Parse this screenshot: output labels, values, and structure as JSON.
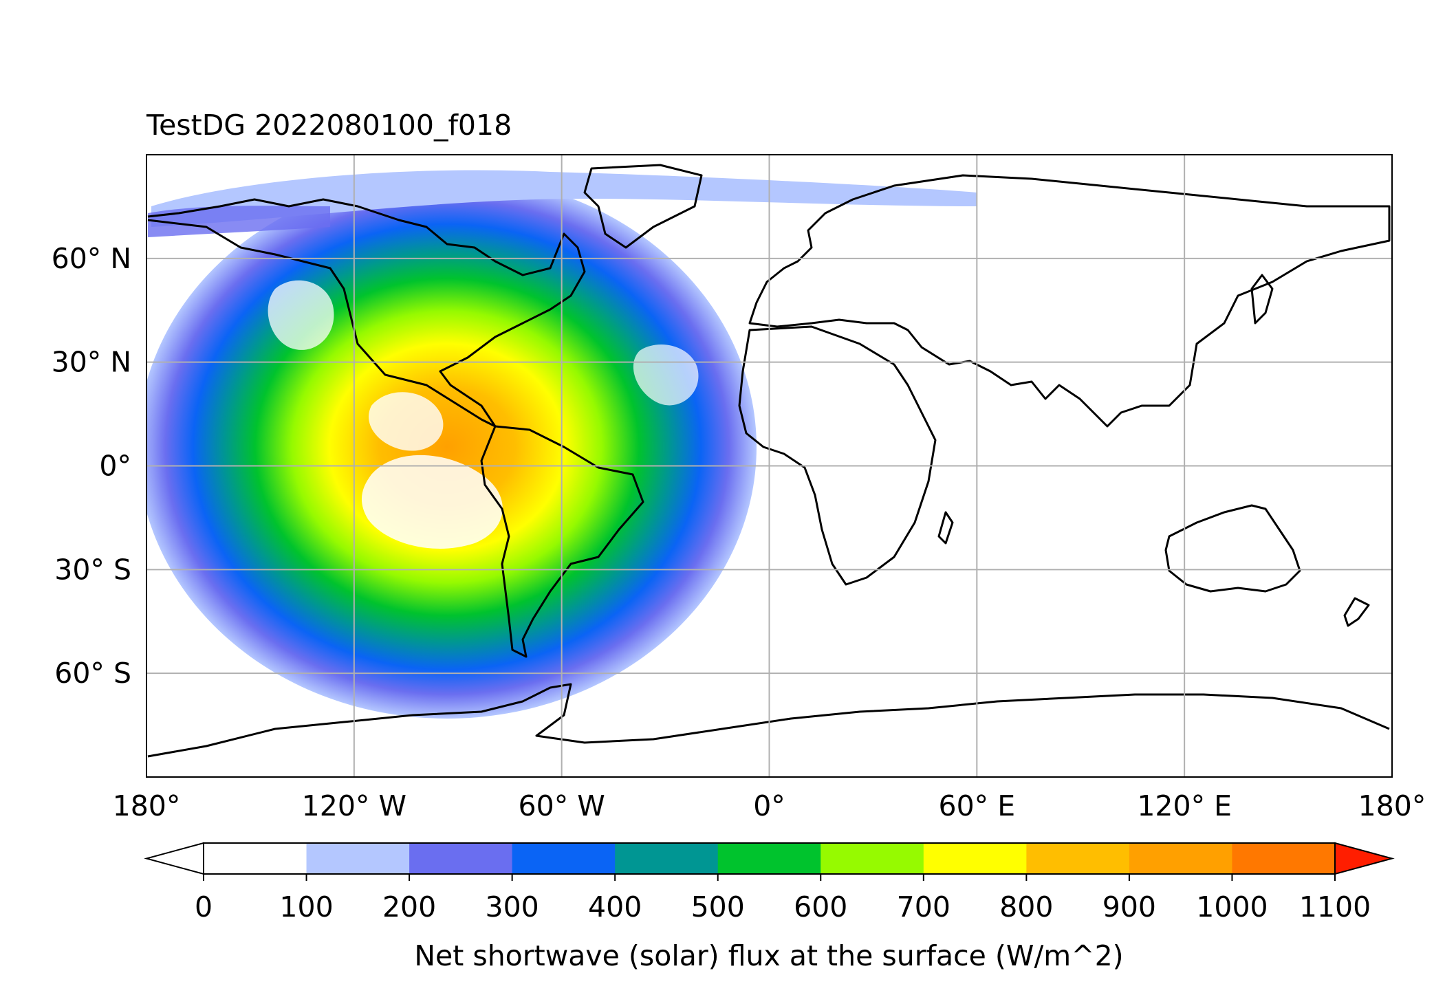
{
  "title": "TestDG 2022080100_f018",
  "map": {
    "projection": "PlateCarree",
    "lon_range": [
      -180,
      180
    ],
    "lat_range": [
      -90,
      90
    ],
    "lon_ticks": [
      {
        "value": -180,
        "label": "180°"
      },
      {
        "value": -120,
        "label": "120° W"
      },
      {
        "value": -60,
        "label": "60° W"
      },
      {
        "value": 0,
        "label": "0°"
      },
      {
        "value": 60,
        "label": "60° E"
      },
      {
        "value": 120,
        "label": "120° E"
      },
      {
        "value": 180,
        "label": "180°"
      }
    ],
    "lat_ticks": [
      {
        "value": 60,
        "label": "60° N"
      },
      {
        "value": 30,
        "label": "30° N"
      },
      {
        "value": 0,
        "label": "0°"
      },
      {
        "value": -30,
        "label": "30° S"
      },
      {
        "value": -60,
        "label": "60° S"
      }
    ],
    "gridlines": true,
    "gridline_color": "#b0b0b0",
    "coastline_color": "#000000",
    "field_center": {
      "lon": -60,
      "lat": 5
    }
  },
  "colorbar": {
    "label": "Net shortwave (solar) flux at the surface (W/m^2)",
    "extend": "both",
    "levels": [
      0,
      100,
      200,
      300,
      400,
      500,
      600,
      700,
      800,
      900,
      1000,
      1100
    ],
    "tick_labels": [
      "0",
      "100",
      "200",
      "300",
      "400",
      "500",
      "600",
      "700",
      "800",
      "900",
      "1000",
      "1100"
    ],
    "under_color": "#ffffff",
    "colors": [
      "#ffffff",
      "#b4c7ff",
      "#6a6ef0",
      "#0a64f5",
      "#009693",
      "#00c32d",
      "#96fa00",
      "#ffff00",
      "#ffbe00",
      "#ffa000",
      "#ff7800"
    ],
    "over_color": "#ff1e00"
  }
}
